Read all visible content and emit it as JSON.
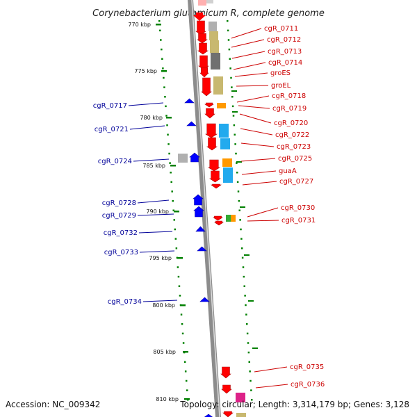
{
  "title": "Corynebacterium glutamicum R, complete genome",
  "footer": {
    "accession": "Accession: NC_009342",
    "summary": "Topology: circular; Length: 3,314,179 bp; Genes: 3,128"
  },
  "colors": {
    "forward_gene": "#ff0000",
    "reverse_gene": "#0000ff",
    "forward_label": "#cc0000",
    "reverse_label": "#000099",
    "tick": "#008000",
    "backbone": "#888888",
    "cog_gray": "#b0b0b0",
    "cog_khaki": "#c8b870",
    "cog_darkgray": "#707070",
    "cog_orange": "#ff9900",
    "cog_cyan": "#22aaee",
    "cog_green": "#33aa33",
    "cog_magenta": "#dd2288"
  },
  "kbp_labels": [
    "770 kbp",
    "775 kbp",
    "780 kbp",
    "785 kbp",
    "790 kbp",
    "795 kbp",
    "800 kbp",
    "805 kbp",
    "810 kbp"
  ],
  "forward_genes": [
    "cgR_0711",
    "cgR_0712",
    "cgR_0713",
    "cgR_0714",
    "groES",
    "groEL",
    "cgR_0718",
    "cgR_0719",
    "cgR_0720",
    "cgR_0722",
    "cgR_0723",
    "cgR_0725",
    "guaA",
    "cgR_0727",
    "cgR_0730",
    "cgR_0731",
    "cgR_0735",
    "cgR_0736"
  ],
  "reverse_genes": [
    "cgR_0717",
    "cgR_0721",
    "cgR_0724",
    "cgR_0728",
    "cgR_0729",
    "cgR_0732",
    "cgR_0733",
    "cgR_0734"
  ]
}
